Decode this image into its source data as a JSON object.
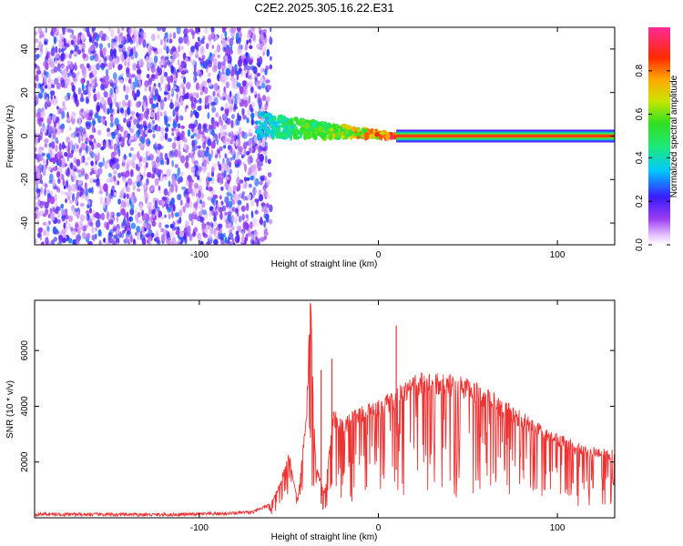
{
  "chart_data": [
    {
      "type": "heatmap",
      "title": "C2E2.2025.305.16.22.E31",
      "xlabel": "Height of straight line (km)",
      "ylabel": "Frequency (Hz)",
      "xlim": [
        -192,
        132
      ],
      "ylim": [
        -50,
        50
      ],
      "xticks": [
        -100,
        0,
        100
      ],
      "yticks": [
        -40,
        -20,
        0,
        20,
        40
      ],
      "description_series": [
        {
          "name": "noise field",
          "x_range": [
            -192,
            -60
          ],
          "freq_range": [
            -50,
            50
          ],
          "amplitude": [
            0.0,
            0.25
          ]
        },
        {
          "name": "transition signal",
          "x_range": [
            -68,
            10
          ],
          "freq_center": [
            5,
            0
          ],
          "amplitude": [
            0.2,
            1.0
          ]
        },
        {
          "name": "steady carrier",
          "x_range": [
            10,
            132
          ],
          "freq_center": 0,
          "amplitude": 1.0
        }
      ],
      "colorbar": {
        "label": "Normalized spectral amplitude",
        "range": [
          0,
          1
        ],
        "ticks": [
          "0.0",
          "0.2",
          "0.4",
          "0.6",
          "0.8"
        ]
      }
    },
    {
      "type": "line",
      "xlabel": "Height of straight line (km)",
      "ylabel": "SNR (10 * v/v)",
      "xlim": [
        -192,
        132
      ],
      "ylim": [
        0,
        7800
      ],
      "xticks": [
        -100,
        0,
        100
      ],
      "yticks": [
        2000,
        4000,
        6000
      ],
      "series": [
        {
          "name": "SNR",
          "color": "#ee3333",
          "x": [
            -192,
            -160,
            -120,
            -90,
            -70,
            -60,
            -55,
            -50,
            -45,
            -40,
            -38,
            -35,
            -30,
            -25,
            -20,
            -10,
            0,
            10,
            20,
            30,
            40,
            50,
            60,
            70,
            80,
            90,
            100,
            110,
            120,
            132
          ],
          "values": [
            130,
            120,
            110,
            140,
            200,
            500,
            1200,
            2200,
            600,
            3800,
            7700,
            1800,
            900,
            3600,
            3300,
            3700,
            3900,
            4300,
            4700,
            4900,
            4750,
            4600,
            4300,
            3900,
            3500,
            3100,
            2800,
            2500,
            2350,
            2250
          ]
        }
      ]
    }
  ]
}
